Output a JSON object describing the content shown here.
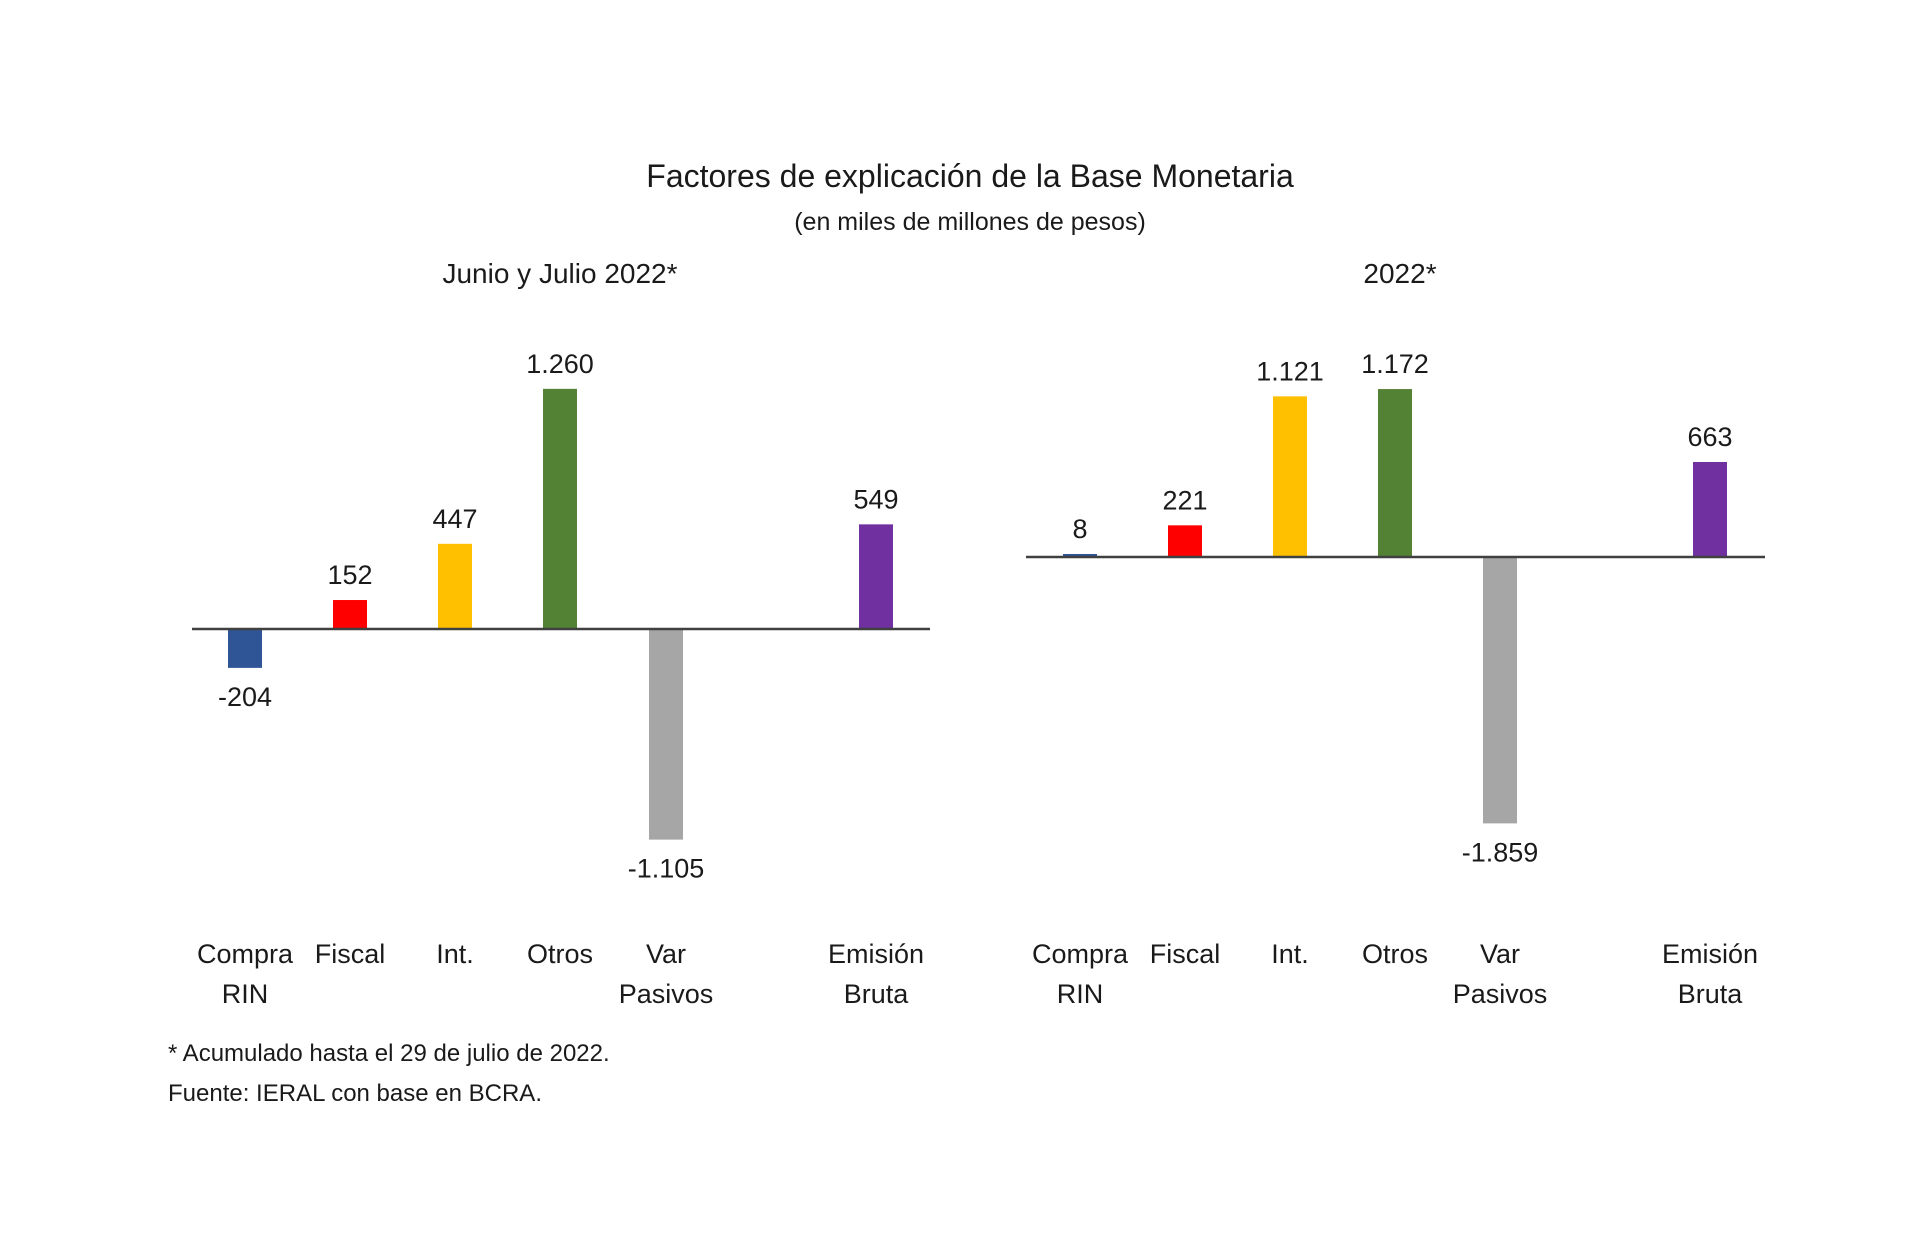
{
  "title": "Factores de explicación de la Base Monetaria",
  "subtitle": "(en miles de millones de pesos)",
  "footnotes": [
    "* Acumulado hasta el 29 de julio de 2022.",
    "Fuente: IERAL con base en BCRA."
  ],
  "colors": {
    "compra_rin": "#2f5597",
    "fiscal": "#ff0000",
    "int": "#ffc000",
    "otros": "#548235",
    "var_pasivos": "#a6a6a6",
    "emision_bruta": "#7030a0"
  },
  "chart_data": [
    {
      "type": "bar",
      "title": "Junio y Julio 2022*",
      "categories": [
        [
          "Compra",
          "RIN"
        ],
        [
          "Fiscal"
        ],
        [
          "Int."
        ],
        [
          "Otros"
        ],
        [
          "Var",
          "Pasivos"
        ],
        [
          "Emisión",
          "Bruta"
        ]
      ],
      "values": [
        -204,
        152,
        447,
        1260,
        -1105,
        549
      ],
      "labels": [
        "-204",
        "152",
        "447",
        "1.260",
        "-1.105",
        "549"
      ],
      "colors": [
        "#2f5597",
        "#ff0000",
        "#ffc000",
        "#548235",
        "#a6a6a6",
        "#7030a0"
      ]
    },
    {
      "type": "bar",
      "title": "2022*",
      "categories": [
        [
          "Compra",
          "RIN"
        ],
        [
          "Fiscal"
        ],
        [
          "Int."
        ],
        [
          "Otros"
        ],
        [
          "Var",
          "Pasivos"
        ],
        [
          "Emisión",
          "Bruta"
        ]
      ],
      "values": [
        8,
        221,
        1121,
        1172,
        -1859,
        663
      ],
      "labels": [
        "8",
        "221",
        "1.121",
        "1.172",
        "-1.859",
        "663"
      ],
      "colors": [
        "#2f5597",
        "#ff0000",
        "#ffc000",
        "#548235",
        "#a6a6a6",
        "#7030a0"
      ]
    }
  ]
}
